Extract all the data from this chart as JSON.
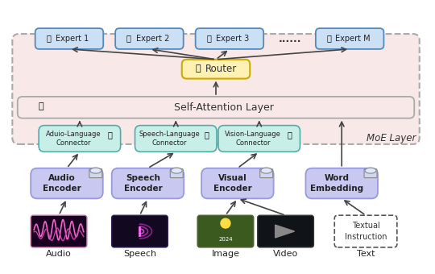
{
  "bg_color": "#ffffff",
  "moe_bg": "#f9e8e8",
  "moe_border": "#888888",
  "sa_bg": "#f9e8e8",
  "sa_border": "#888888",
  "expert_bg": "#cce0f5",
  "expert_border": "#5588bb",
  "router_bg": "#fff0b3",
  "router_border": "#ccaa00",
  "connector_bg": "#c8eee8",
  "connector_border": "#55aaaa",
  "encoder_bg": "#c8c8f0",
  "encoder_border": "#9999dd",
  "experts": [
    "Expert 1",
    "Expert 2",
    "Expert 3",
    "Expert M"
  ],
  "connectors": [
    "Aduio-Language\nConnector",
    "Speech-Language\nConnector",
    "Vision-Language\nConnector"
  ],
  "encoders": [
    "Audio\nEncoder",
    "Speech\nEncoder",
    "Visual\nEncoder",
    "Word\nEmbedding"
  ],
  "modalities": [
    "Audio",
    "Speech",
    "Image",
    "Video",
    "Text"
  ],
  "dots": "......",
  "moe_label": "MoE Layer",
  "sa_label": "Self-Attention Layer"
}
